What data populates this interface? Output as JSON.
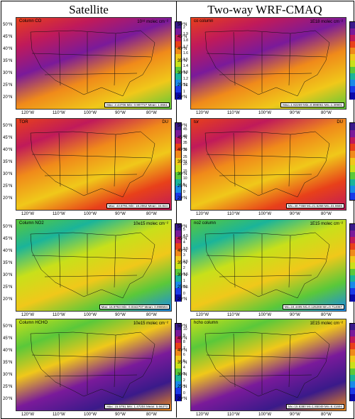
{
  "headers": {
    "left": "Satellite",
    "right": "Two-way WRF-CMAQ"
  },
  "lat_labels": [
    "50°N",
    "45°N",
    "40°N",
    "35°N",
    "30°N",
    "25°N",
    "20°N"
  ],
  "lon_labels": [
    "120°W",
    "110°W",
    "100°W",
    "90°W",
    "80°W"
  ],
  "rows": [
    {
      "left": {
        "title": "Column CO",
        "units": "10¹⁸ molec cm⁻²",
        "stats": "Max: 2.44706   Min: 0.907727   Mean: 1.8661"
      },
      "right": {
        "title": "co column",
        "units": "1E18 molec cm⁻²",
        "stats": "Max=1.82269   Min=0.898061   Mn=1.30901"
      },
      "ticks": [
        "2",
        "1.9",
        "1.8",
        "1.7",
        "1.6",
        "1.5",
        "1.4",
        "1.3",
        "1.2",
        "1.1",
        "1"
      ],
      "colors": [
        "#3a1a8a",
        "#7a1a9a",
        "#c01a5a",
        "#e8401a",
        "#f08a1a",
        "#f0c81a",
        "#c8e01a",
        "#5ac83a",
        "#1ab49a",
        "#1a8ae8",
        "#1a3ae8",
        "#0a0aa8"
      ]
    },
    {
      "left": {
        "title": "TOR",
        "units": "DU",
        "stats": "Max: 43.8791   Min: 18.2062   Mean: 34.844"
      },
      "right": {
        "title": "tor",
        "units": "DU",
        "stats": "Mx=40.7458   Mi=21.5268   Mn=31.8665"
      },
      "ticks": [
        "45",
        "40",
        "35",
        "30",
        "25",
        "20",
        "15",
        "10",
        "5",
        "0"
      ],
      "colors": [
        "#3a1a8a",
        "#7a1a9a",
        "#c01a5a",
        "#e8401a",
        "#f08a1a",
        "#f0c81a",
        "#c8e01a",
        "#5ac83a",
        "#1ab49a",
        "#1a8ae8",
        "#1a3ae8"
      ]
    },
    {
      "left": {
        "title": "Column NO2",
        "units": "10e15 molec cm⁻²",
        "stats": "Max: 15.9763   Min: 0.0342707   Mean: 0.998594"
      },
      "right": {
        "title": "no2 column",
        "units": "1E15 molec cm⁻²",
        "stats": "Mx=24.4405   Mi=0.125269   Mn=0.714067"
      },
      "ticks": [
        "5",
        "4.5",
        "4",
        "3.5",
        "3",
        "2.5",
        "2",
        "1.5",
        "1",
        "0.5",
        "0"
      ],
      "colors": [
        "#3a1a8a",
        "#7a1a9a",
        "#c01a5a",
        "#e8401a",
        "#f08a1a",
        "#f0c81a",
        "#c8e01a",
        "#5ac83a",
        "#1ab49a",
        "#1a8ae8",
        "#1a3ae8",
        "#0a0aa8"
      ]
    },
    {
      "left": {
        "title": "Column HCHO",
        "units": "10e15 molec cm⁻²",
        "stats": "Max: 15.5791   Min: 1.47204   Mean: 5.66373"
      },
      "right": {
        "title": "hcho column",
        "units": "1E15 molec cm⁻²",
        "stats": "Mx=15.8380   Mi=1.85049   Mn=6.41694"
      },
      "ticks": [
        "10",
        "9",
        "8",
        "7",
        "6",
        "5",
        "4",
        "3",
        "2",
        "1",
        "0"
      ],
      "colors": [
        "#3a1a8a",
        "#7a1a9a",
        "#c01a5a",
        "#e8401a",
        "#f08a1a",
        "#f0c81a",
        "#c8e01a",
        "#5ac83a",
        "#1ab49a",
        "#1a8ae8",
        "#1a3ae8",
        "#0a0aa8"
      ]
    }
  ]
}
